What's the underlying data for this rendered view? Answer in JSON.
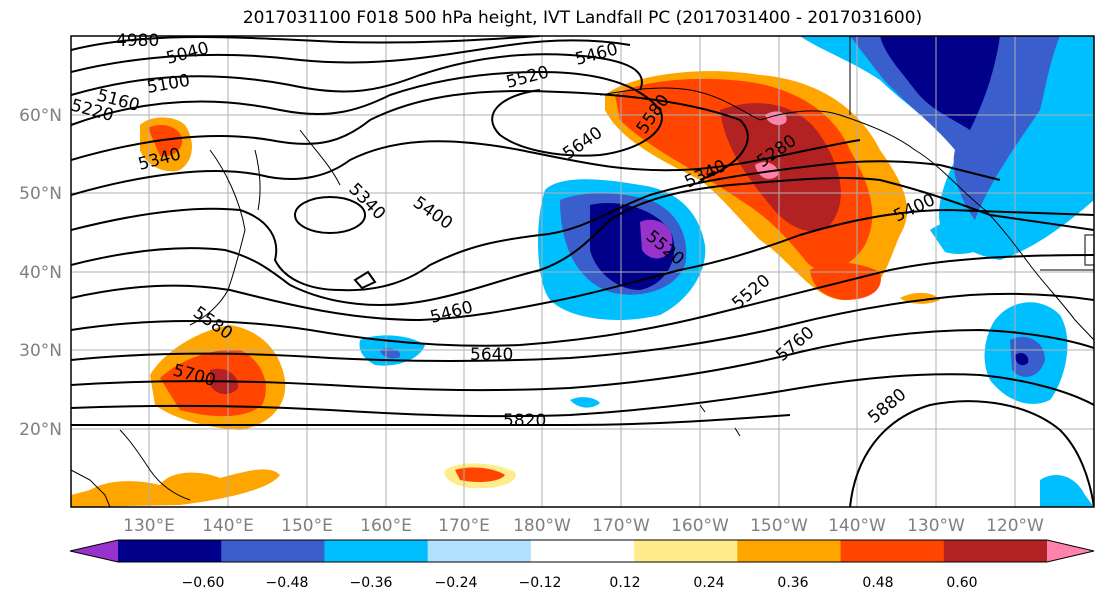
{
  "title": "2017031100 F018 500 hPa height, IVT Landfall PC (2017031400 - 2017031600)",
  "map": {
    "lat_labels": [
      "60°N",
      "50°N",
      "40°N",
      "30°N",
      "20°N"
    ],
    "lon_labels": [
      "130°E",
      "140°E",
      "150°E",
      "160°E",
      "170°E",
      "180°W",
      "170°W",
      "160°W",
      "150°W",
      "140°W",
      "130°W",
      "120°W"
    ],
    "contour_labels": [
      "4980",
      "5040",
      "5100",
      "5160",
      "5220",
      "5340",
      "5460",
      "5520",
      "5580",
      "5640",
      "5340",
      "5400",
      "5340",
      "5280",
      "5400",
      "5520",
      "5460",
      "5520",
      "5640",
      "5580",
      "5700",
      "5760",
      "5820",
      "5880"
    ]
  },
  "colorbar": {
    "tick_labels": [
      "−0.60",
      "−0.48",
      "−0.36",
      "−0.24",
      "−0.12",
      "0.12",
      "0.24",
      "0.36",
      "0.48",
      "0.60"
    ],
    "colors": [
      "#9932cc",
      "#00008b",
      "#3a5fcd",
      "#00bfff",
      "#b0e2ff",
      "#ffffff",
      "#ffec8b",
      "#ffa500",
      "#ff4500",
      "#b22222",
      "#ff82ab"
    ]
  }
}
